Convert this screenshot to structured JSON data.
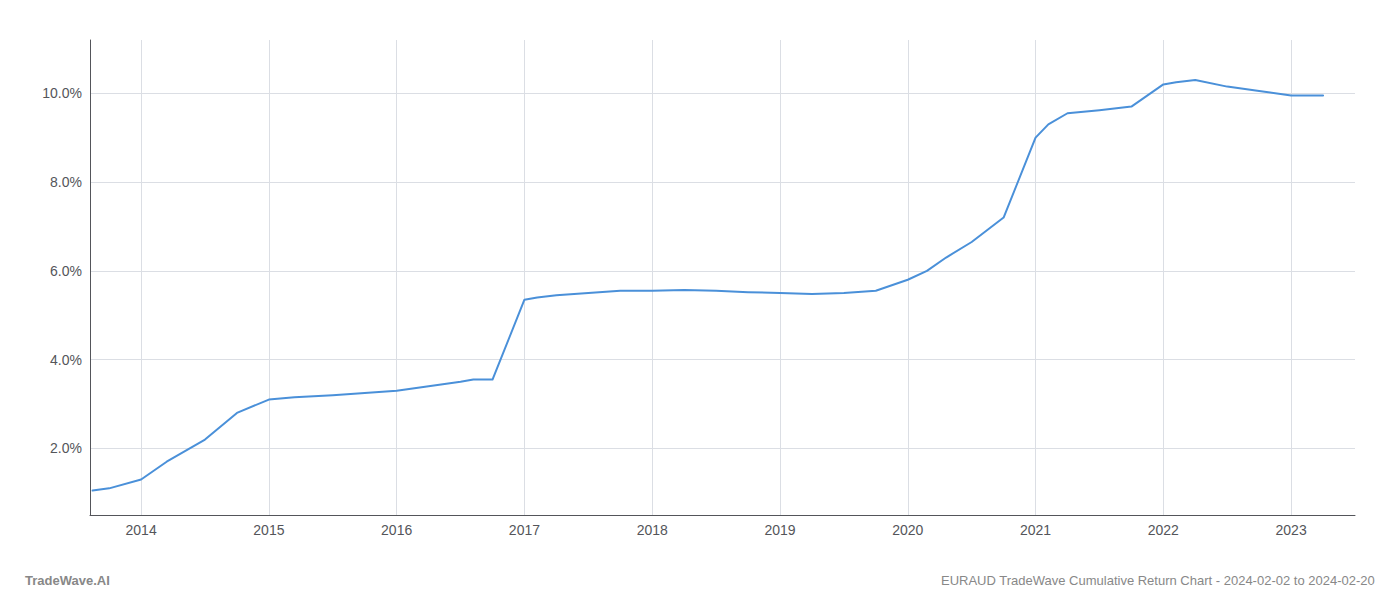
{
  "chart_data": {
    "type": "line",
    "annotations": [
      "TradeWave.AI",
      "EURAUD TradeWave Cumulative Return Chart - 2024-02-02 to 2024-02-20"
    ],
    "x": [
      2013.62,
      2013.75,
      2014.0,
      2014.2,
      2014.5,
      2014.75,
      2015.0,
      2015.2,
      2015.5,
      2015.75,
      2016.0,
      2016.25,
      2016.5,
      2016.6,
      2016.75,
      2017.0,
      2017.1,
      2017.25,
      2017.5,
      2017.75,
      2018.0,
      2018.25,
      2018.5,
      2018.75,
      2019.0,
      2019.25,
      2019.5,
      2019.75,
      2020.0,
      2020.15,
      2020.3,
      2020.5,
      2020.75,
      2021.0,
      2021.1,
      2021.25,
      2021.5,
      2021.75,
      2022.0,
      2022.1,
      2022.25,
      2022.5,
      2022.75,
      2023.0,
      2023.25
    ],
    "values": [
      1.05,
      1.1,
      1.3,
      1.7,
      2.2,
      2.8,
      3.1,
      3.15,
      3.2,
      3.25,
      3.3,
      3.4,
      3.5,
      3.55,
      3.55,
      5.35,
      5.4,
      5.45,
      5.5,
      5.55,
      5.55,
      5.57,
      5.55,
      5.52,
      5.5,
      5.48,
      5.5,
      5.55,
      5.8,
      6.0,
      6.3,
      6.65,
      7.2,
      9.0,
      9.3,
      9.55,
      9.62,
      9.7,
      10.2,
      10.25,
      10.3,
      10.15,
      10.05,
      9.95,
      9.95
    ],
    "color": "#4a90d9",
    "xlim": [
      2013.6,
      2023.5
    ],
    "xticks": [
      2014,
      2015,
      2016,
      2017,
      2018,
      2019,
      2020,
      2021,
      2022,
      2023
    ],
    "ylim": [
      0.5,
      11.2
    ],
    "yticks": [
      {
        "value": 2.0,
        "label": "2.0%"
      },
      {
        "value": 4.0,
        "label": "4.0%"
      },
      {
        "value": 6.0,
        "label": "6.0%"
      },
      {
        "value": 8.0,
        "label": "8.0%"
      },
      {
        "value": 10.0,
        "label": "10.0%"
      }
    ],
    "grid": true
  }
}
